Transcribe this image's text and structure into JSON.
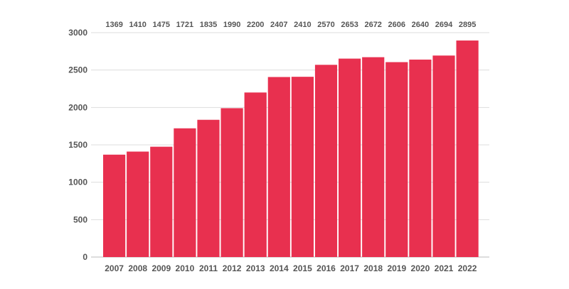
{
  "chart_data": {
    "type": "bar",
    "categories": [
      "2007",
      "2008",
      "2009",
      "2010",
      "2011",
      "2012",
      "2013",
      "2014",
      "2015",
      "2016",
      "2017",
      "2018",
      "2019",
      "2020",
      "2021",
      "2022"
    ],
    "values": [
      1369,
      1410,
      1475,
      1721,
      1835,
      1990,
      2200,
      2407,
      2410,
      2570,
      2653,
      2672,
      2606,
      2640,
      2694,
      2895
    ],
    "title": "",
    "xlabel": "",
    "ylabel": "",
    "ylim": [
      0,
      3000
    ],
    "yticks": [
      0,
      500,
      1000,
      1500,
      2000,
      2500,
      3000
    ],
    "grid": true,
    "data_labels_position": "top",
    "bar_color": "#e8304f"
  }
}
